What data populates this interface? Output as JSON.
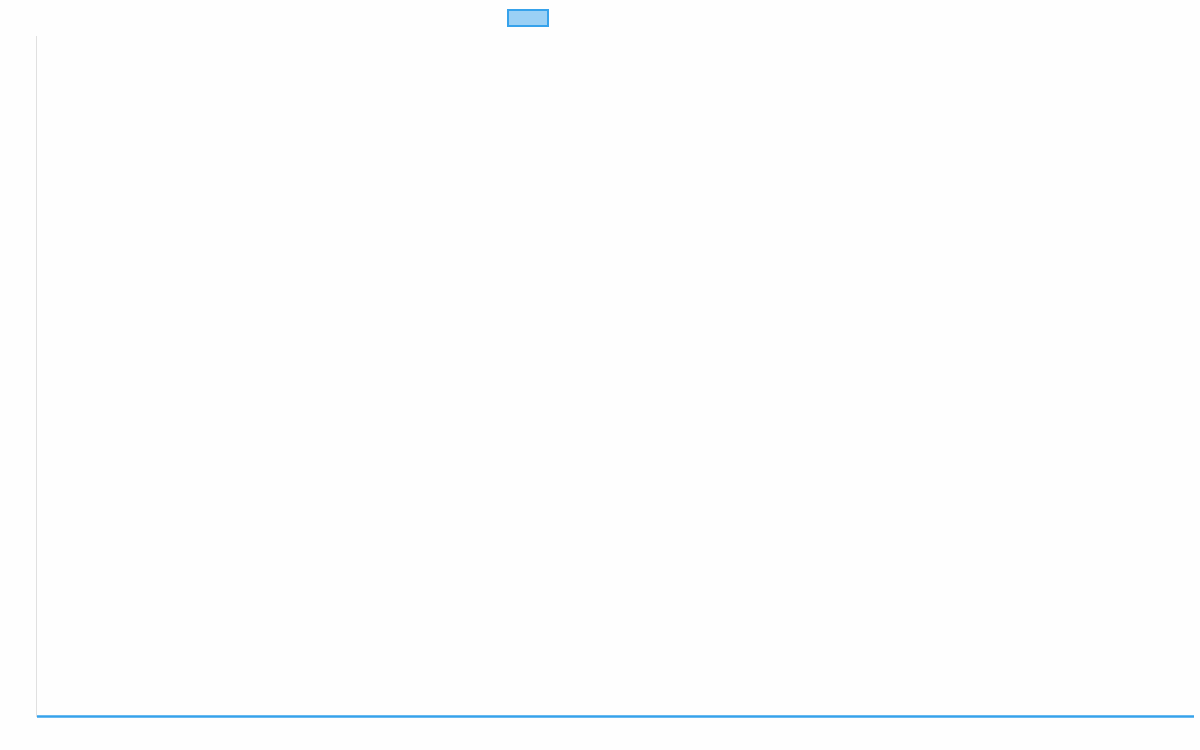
{
  "chart_data": {
    "type": "line",
    "title": "",
    "xlabel": "",
    "ylabel": "",
    "categories": [],
    "series": [
      {
        "values": [],
        "color": "#36a2eb",
        "fill": "#9ad0f5"
      }
    ],
    "legend": {
      "position": "top",
      "label": ""
    },
    "grid": false,
    "axis_color": "#e0e0e0"
  }
}
